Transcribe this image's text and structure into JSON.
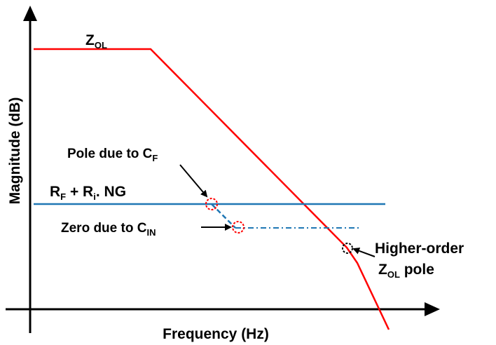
{
  "axes": {
    "x_label": "Frequency (Hz)",
    "y_label": "Magnitude (dB)"
  },
  "labels": {
    "z_ol": {
      "main": "Z",
      "sub": "OL"
    },
    "rf_ri_ng": {
      "p1": "R",
      "s1": "F",
      "p2": " + R",
      "s2": "i",
      "p3": ". NG"
    },
    "pole_cf": {
      "main": "Pole due to C",
      "sub": "F"
    },
    "zero_cin": {
      "main": "Zero due to C",
      "sub": "IN"
    },
    "higher_order": {
      "line1": "Higher-order",
      "line2_main": "Z",
      "line2_sub": "OL",
      "line2_rest": " pole"
    }
  },
  "colors": {
    "z_ol_curve": "#ff0000",
    "feedback_curve": "#1f77b4",
    "marker": "#ff0000",
    "axis": "#000000"
  }
}
